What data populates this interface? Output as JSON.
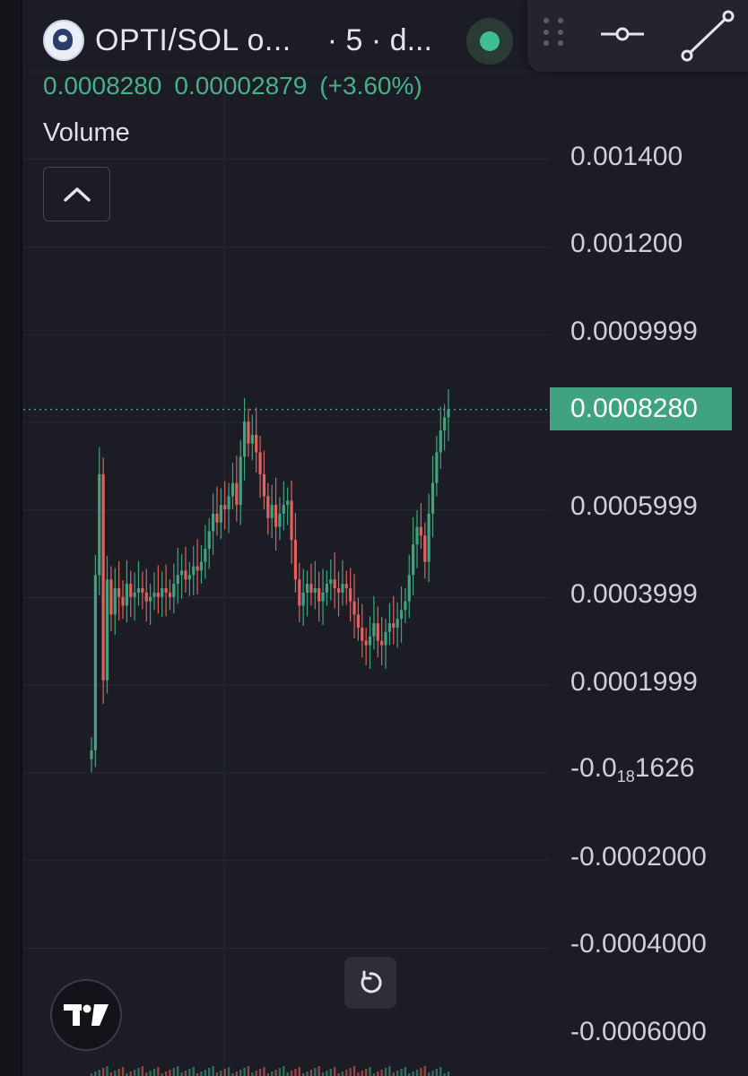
{
  "header": {
    "symbol": "OPTI/SOL o...",
    "interval": "· 5 · d...",
    "status_color": "#3fbf8f"
  },
  "toolbar": {
    "icons": [
      "drag-handle-icon",
      "horizontal-line-icon",
      "trend-line-icon"
    ]
  },
  "legend": {
    "close": "0.0008280",
    "change": "0.00002879",
    "change_pct": "(+3.60%)",
    "up_color": "#46b08b"
  },
  "indicator": {
    "volume_label": "Volume",
    "collapse_icon": "chevron-up-icon"
  },
  "price_axis": {
    "labels": [
      {
        "text": "0.001400"
      },
      {
        "text": "0.001200"
      },
      {
        "text": "0.0009999"
      },
      {
        "text": "0.0005999"
      },
      {
        "text": "0.0003999"
      },
      {
        "text": "0.0001999"
      },
      {
        "main": "-0.0",
        "sub": "18",
        "rest": "1626"
      },
      {
        "text": "-0.0002000"
      },
      {
        "text": "-0.0004000"
      },
      {
        "text": "-0.0006000"
      }
    ],
    "last_price": "0.0008280",
    "last_price_color": "#3fa382"
  },
  "controls": {
    "reset_icon": "reset-icon",
    "brand_icon": "tradingview-logo-icon"
  },
  "chart_data": {
    "type": "candlestick",
    "up_color": "#3fa382",
    "down_color": "#e0615e",
    "ylim": [
      -0.0006,
      0.0016
    ],
    "last_price": 0.000828,
    "grid": true,
    "close_series": [
      5e-05,
      0.00045,
      0.00068,
      0.00021,
      0.00044,
      0.00036,
      0.00042,
      0.0004,
      0.00038,
      0.00043,
      0.0004,
      0.00041,
      0.00042,
      0.00041,
      0.00039,
      0.0004,
      0.00041,
      0.0004,
      0.00042,
      0.00041,
      0.0004,
      0.00043,
      0.00045,
      0.00046,
      0.00044,
      0.00045,
      0.00047,
      0.00046,
      0.00048,
      0.00051,
      0.00055,
      0.00059,
      0.00057,
      0.00061,
      0.0006,
      0.00063,
      0.00066,
      0.00061,
      0.00072,
      0.0008,
      0.00075,
      0.00077,
      0.00073,
      0.00068,
      0.00063,
      0.00058,
      0.00061,
      0.00056,
      0.00059,
      0.00061,
      0.00062,
      0.00053,
      0.00044,
      0.00038,
      0.00041,
      0.00043,
      0.00041,
      0.00042,
      0.00039,
      0.00041,
      0.00043,
      0.00044,
      0.00042,
      0.00041,
      0.00043,
      0.00042,
      0.00039,
      0.00036,
      0.00033,
      0.0003,
      0.00029,
      0.00031,
      0.00034,
      0.0003,
      0.00029,
      0.00032,
      0.00034,
      0.00033,
      0.00035,
      0.00037,
      0.00039,
      0.00045,
      0.00052,
      0.00056,
      0.00054,
      0.00048,
      0.00059,
      0.00066,
      0.00073,
      0.00078,
      0.00081,
      0.000828
    ]
  }
}
